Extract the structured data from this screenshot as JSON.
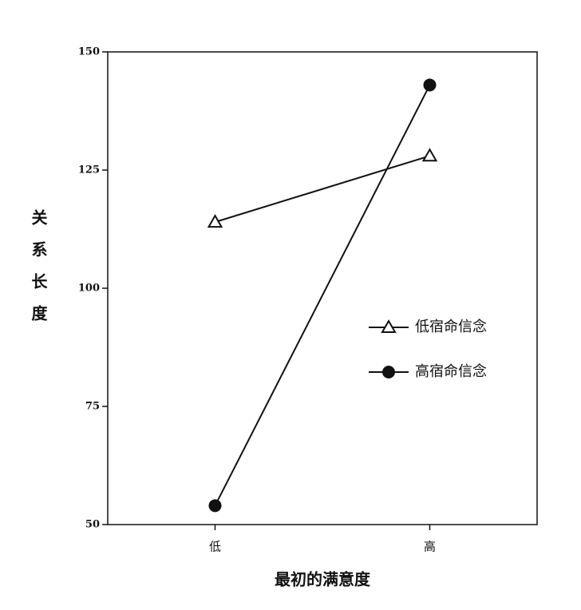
{
  "chart_data": {
    "type": "line",
    "y_label": "关系长度",
    "x_label": "最初的满意度",
    "categories": [
      "低",
      "高"
    ],
    "series": [
      {
        "name": "低宿命信念",
        "color": "#111111",
        "marker": "triangle",
        "values": [
          114,
          128
        ]
      },
      {
        "name": "高宿命信念",
        "color": "#111111",
        "marker": "circle",
        "values": [
          54,
          143
        ]
      }
    ],
    "ylim": [
      50,
      150
    ],
    "yticks": [
      50,
      75,
      100,
      125,
      150
    ],
    "grid": false
  }
}
